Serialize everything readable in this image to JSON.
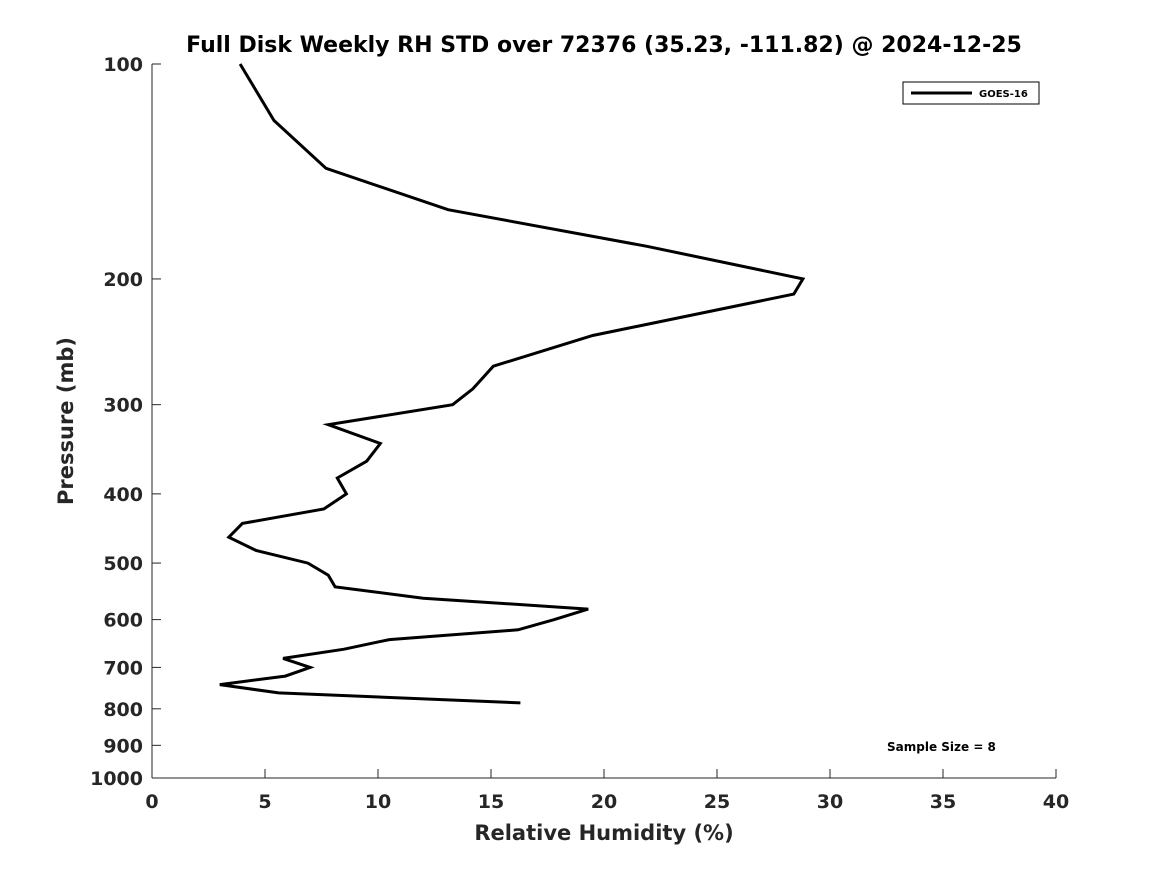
{
  "chart_data": {
    "type": "line",
    "title": "Full Disk Weekly RH STD over 72376 (35.23, -111.82) @ 2024-12-25",
    "xlabel": "Relative Humidity (%)",
    "ylabel": "Pressure (mb)",
    "xlim": [
      0,
      40
    ],
    "ylim": [
      100,
      1000
    ],
    "y_scale": "log",
    "y_reversed": true,
    "grid": false,
    "legend_position": "top-right",
    "x_ticks": [
      "0",
      "5",
      "10",
      "15",
      "20",
      "25",
      "30",
      "35",
      "40"
    ],
    "y_ticks": [
      "100",
      "200",
      "300",
      "400",
      "500",
      "600",
      "700",
      "800",
      "900",
      "1000"
    ],
    "annotation": "Sample Size = 8",
    "series": [
      {
        "name": "GOES-16",
        "color": "#000000",
        "x": [
          3.9,
          5.4,
          7.7,
          13.1,
          21.9,
          28.8,
          28.4,
          19.5,
          15.1,
          14.2,
          13.3,
          7.8,
          10.1,
          9.5,
          8.2,
          8.6,
          7.6,
          4.0,
          3.4,
          4.6,
          6.9,
          7.8,
          8.1,
          12.0,
          19.3,
          17.8,
          16.2,
          10.5,
          8.5,
          5.8,
          7.0,
          5.9,
          3.0,
          5.6,
          16.3
        ],
        "y": [
          100,
          120,
          140,
          160,
          180,
          200,
          210,
          240,
          265,
          285,
          300,
          320,
          340,
          360,
          380,
          400,
          420,
          440,
          460,
          480,
          500,
          520,
          540,
          560,
          580,
          600,
          620,
          640,
          660,
          680,
          700,
          720,
          740,
          760,
          785
        ]
      }
    ]
  }
}
